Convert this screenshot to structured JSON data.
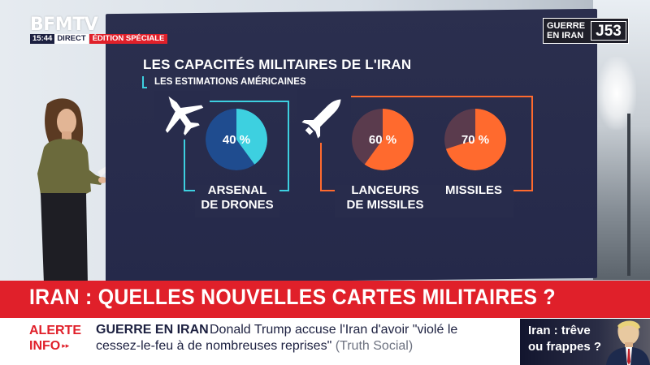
{
  "broadcast": {
    "logo": "BFMTV",
    "time": "15:44",
    "live_label": "DIRECT",
    "edition_label": "ÉDITION SPÉCIALE"
  },
  "war_badge": {
    "line1": "GUERRE",
    "line2": "EN IRAN",
    "day": "J53"
  },
  "graphic": {
    "title": "LES CAPACITÉS MILITAIRES DE L'IRAN",
    "subtitle": "LES ESTIMATIONS AMÉRICAINES",
    "groups": [
      {
        "name": "drones",
        "icon": "fighter-jet-icon",
        "frame_color": "#3dd0e0"
      },
      {
        "name": "missiles",
        "icon": "missile-icon",
        "frame_color": "#ff6a2e"
      }
    ],
    "items": [
      {
        "label_line1": "ARSENAL",
        "label_line2": "DE DRONES",
        "percent": 40,
        "percent_label": "40 %",
        "color": "#3dd0e0",
        "remaining_color": "#1f4c8f"
      },
      {
        "label_line1": "LANCEURS",
        "label_line2": "DE MISSILES",
        "percent": 60,
        "percent_label": "60 %",
        "color": "#ff6a2e",
        "remaining_color": "#5a3b4d"
      },
      {
        "label_line1": "MISSILES",
        "label_line2": "",
        "percent": 70,
        "percent_label": "70 %",
        "color": "#ff6a2e",
        "remaining_color": "#5a3b4d"
      }
    ]
  },
  "headline": "IRAN : QUELLES NOUVELLES CARTES MILITAIRES ?",
  "ticker": {
    "alert_line1": "ALERTE",
    "alert_line2": "INFO",
    "topic": "GUERRE EN IRAN",
    "text": "Donald Trump accuse l'Iran d'avoir \"violé le",
    "text_cont": "cessez-le-feu à de nombreuses reprises\"",
    "source": "(Truth Social)"
  },
  "teaser": {
    "line1": "Iran : trêve",
    "line2": "ou frappes ?"
  }
}
